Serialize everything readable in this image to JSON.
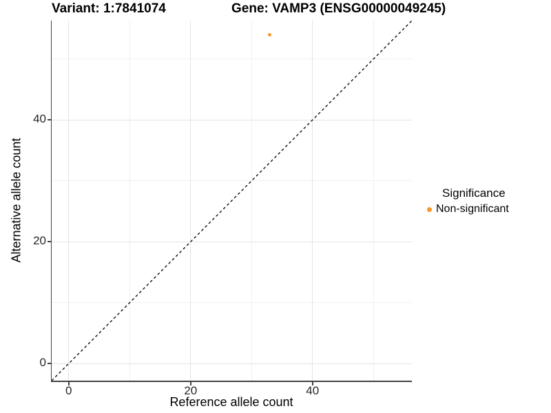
{
  "chart_data": {
    "type": "scatter",
    "titles": {
      "variant": "Variant: 1:7841074",
      "gene": "Gene: VAMP3 (ENSG00000049245)"
    },
    "xlabel": "Reference allele count",
    "ylabel": "Alternative allele count",
    "xlim": [
      -2.8,
      56.3
    ],
    "ylim": [
      -2.8,
      56.3
    ],
    "x_ticks": [
      0,
      20,
      40
    ],
    "y_ticks": [
      0,
      20,
      40
    ],
    "x_minor_gridlines": [
      10,
      30,
      50
    ],
    "y_minor_gridlines": [
      10,
      30,
      50
    ],
    "grid": "major+minor",
    "identity_line": {
      "slope": 1,
      "intercept": 0,
      "style": "dashed",
      "color": "#000000",
      "equation": "y = x"
    },
    "series": [
      {
        "name": "Non-significant",
        "color": "#F79928",
        "points": [
          {
            "x": 33,
            "y": 54
          }
        ]
      }
    ],
    "legend": {
      "title": "Significance",
      "position": "right",
      "items": [
        {
          "label": "Non-significant",
          "color": "#F79928",
          "marker": "circle"
        }
      ]
    }
  },
  "style": {
    "background": "#FFFFFF",
    "grid_major": "#E3E3E3",
    "grid_minor": "#F0F0F0",
    "axis_line": "#404040",
    "accent_orange": "#F79928"
  }
}
